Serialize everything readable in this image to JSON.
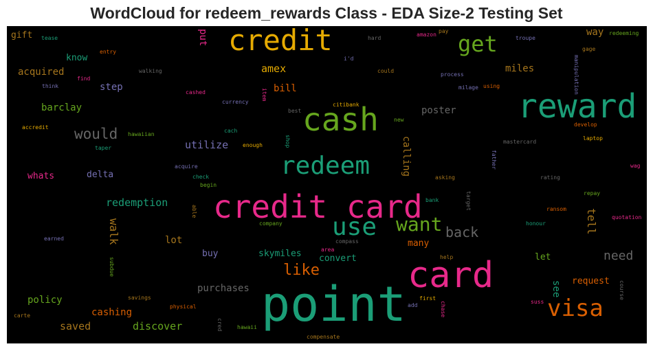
{
  "chart_data": {
    "type": "wordcloud",
    "title": "WordCloud for redeem_rewards Class - EDA Size-2 Testing Set",
    "background": "#000000",
    "colormap": "Dark2",
    "palette": [
      "#1b9e77",
      "#d95f02",
      "#7570b3",
      "#e7298a",
      "#66a61e",
      "#e6ab02",
      "#a6761d",
      "#666666"
    ],
    "words": [
      {
        "text": "point",
        "weight": 1.0,
        "color": "#1b9e77"
      },
      {
        "text": "credit card",
        "weight": 0.82,
        "color": "#e7298a"
      },
      {
        "text": "card",
        "weight": 0.82,
        "color": "#e7298a"
      },
      {
        "text": "reward",
        "weight": 0.8,
        "color": "#1b9e77"
      },
      {
        "text": "credit",
        "weight": 0.7,
        "color": "#e6ab02"
      },
      {
        "text": "cash",
        "weight": 0.7,
        "color": "#66a61e"
      },
      {
        "text": "redeem",
        "weight": 0.6,
        "color": "#1b9e77"
      },
      {
        "text": "use",
        "weight": 0.56,
        "color": "#1b9e77"
      },
      {
        "text": "visa",
        "weight": 0.52,
        "color": "#d95f02"
      },
      {
        "text": "get",
        "weight": 0.48,
        "color": "#66a61e"
      },
      {
        "text": "want",
        "weight": 0.44,
        "color": "#66a61e"
      },
      {
        "text": "like",
        "weight": 0.38,
        "color": "#d95f02"
      },
      {
        "text": "would",
        "weight": 0.36,
        "color": "#666666"
      },
      {
        "text": "back",
        "weight": 0.32,
        "color": "#666666"
      },
      {
        "text": "need",
        "weight": 0.3,
        "color": "#666666"
      },
      {
        "text": "walk",
        "weight": 0.28,
        "color": "#a6761d"
      },
      {
        "text": "tell",
        "weight": 0.28,
        "color": "#a6761d"
      },
      {
        "text": "redemption",
        "weight": 0.28,
        "color": "#1b9e77"
      },
      {
        "text": "utilize",
        "weight": 0.28,
        "color": "#7570b3"
      },
      {
        "text": "discover",
        "weight": 0.28,
        "color": "#66a61e"
      },
      {
        "text": "saved",
        "weight": 0.28,
        "color": "#a6761d"
      },
      {
        "text": "amex",
        "weight": 0.26,
        "color": "#e6ab02"
      },
      {
        "text": "step",
        "weight": 0.26,
        "color": "#7570b3"
      },
      {
        "text": "miles",
        "weight": 0.26,
        "color": "#a6761d"
      },
      {
        "text": "calling",
        "weight": 0.26,
        "color": "#a6761d"
      },
      {
        "text": "lot",
        "weight": 0.26,
        "color": "#a6761d"
      },
      {
        "text": "cashing",
        "weight": 0.26,
        "color": "#d95f02"
      },
      {
        "text": "purchases",
        "weight": 0.26,
        "color": "#666666"
      },
      {
        "text": "see",
        "weight": 0.26,
        "color": "#1b9e77"
      },
      {
        "text": "request",
        "weight": 0.25,
        "color": "#d95f02"
      },
      {
        "text": "bill",
        "weight": 0.25,
        "color": "#d95f02"
      },
      {
        "text": "poster",
        "weight": 0.25,
        "color": "#666666"
      },
      {
        "text": "barclay",
        "weight": 0.24,
        "color": "#66a61e"
      },
      {
        "text": "acquired",
        "weight": 0.24,
        "color": "#a6761d"
      },
      {
        "text": "put",
        "weight": 0.24,
        "color": "#e7298a"
      },
      {
        "text": "way",
        "weight": 0.24,
        "color": "#a6761d"
      },
      {
        "text": "policy",
        "weight": 0.24,
        "color": "#66a61e"
      },
      {
        "text": "know",
        "weight": 0.22,
        "color": "#1b9e77"
      },
      {
        "text": "gift",
        "weight": 0.22,
        "color": "#a6761d"
      },
      {
        "text": "whats",
        "weight": 0.22,
        "color": "#e7298a"
      },
      {
        "text": "delta",
        "weight": 0.22,
        "color": "#7570b3"
      },
      {
        "text": "skymiles",
        "weight": 0.22,
        "color": "#1b9e77"
      },
      {
        "text": "convert",
        "weight": 0.22,
        "color": "#1b9e77"
      },
      {
        "text": "many",
        "weight": 0.22,
        "color": "#d95f02"
      },
      {
        "text": "buy",
        "weight": 0.22,
        "color": "#7570b3"
      },
      {
        "text": "let",
        "weight": 0.22,
        "color": "#66a61e"
      },
      {
        "text": "walking",
        "weight": 0.14,
        "color": "#666666"
      },
      {
        "text": "find",
        "weight": 0.14,
        "color": "#e7298a"
      },
      {
        "text": "think",
        "weight": 0.14,
        "color": "#7570b3"
      },
      {
        "text": "tease",
        "weight": 0.14,
        "color": "#1b9e77"
      },
      {
        "text": "entry",
        "weight": 0.14,
        "color": "#d95f02"
      },
      {
        "text": "cashed",
        "weight": 0.14,
        "color": "#e7298a"
      },
      {
        "text": "currency",
        "weight": 0.14,
        "color": "#7570b3"
      },
      {
        "text": "item",
        "weight": 0.12,
        "color": "#e7298a"
      },
      {
        "text": "best",
        "weight": 0.14,
        "color": "#666666"
      },
      {
        "text": "citibank",
        "weight": 0.14,
        "color": "#e6ab02"
      },
      {
        "text": "new",
        "weight": 0.14,
        "color": "#66a61e"
      },
      {
        "text": "hard",
        "weight": 0.14,
        "color": "#666666"
      },
      {
        "text": "i'd",
        "weight": 0.14,
        "color": "#7570b3"
      },
      {
        "text": "amazon",
        "weight": 0.14,
        "color": "#e7298a"
      },
      {
        "text": "pay",
        "weight": 0.14,
        "color": "#a6761d"
      },
      {
        "text": "troupe",
        "weight": 0.14,
        "color": "#7570b3"
      },
      {
        "text": "redeeming",
        "weight": 0.14,
        "color": "#66a61e"
      },
      {
        "text": "gage",
        "weight": 0.14,
        "color": "#a6761d"
      },
      {
        "text": "manipulation",
        "weight": 0.12,
        "color": "#7570b3"
      },
      {
        "text": "could",
        "weight": 0.14,
        "color": "#a6761d"
      },
      {
        "text": "process",
        "weight": 0.14,
        "color": "#7570b3"
      },
      {
        "text": "milage",
        "weight": 0.14,
        "color": "#7570b3"
      },
      {
        "text": "using",
        "weight": 0.14,
        "color": "#d95f02"
      },
      {
        "text": "accredit",
        "weight": 0.14,
        "color": "#e6ab02"
      },
      {
        "text": "hawaiian",
        "weight": 0.14,
        "color": "#66a61e"
      },
      {
        "text": "cach",
        "weight": 0.14,
        "color": "#1b9e77"
      },
      {
        "text": "taper",
        "weight": 0.14,
        "color": "#1b9e77"
      },
      {
        "text": "enough",
        "weight": 0.14,
        "color": "#e6ab02"
      },
      {
        "text": "shop",
        "weight": 0.12,
        "color": "#1b9e77"
      },
      {
        "text": "acquire",
        "weight": 0.14,
        "color": "#7570b3"
      },
      {
        "text": "check",
        "weight": 0.14,
        "color": "#1b9e77"
      },
      {
        "text": "begin",
        "weight": 0.14,
        "color": "#66a61e"
      },
      {
        "text": "develop",
        "weight": 0.14,
        "color": "#d95f02"
      },
      {
        "text": "laptop",
        "weight": 0.14,
        "color": "#e6ab02"
      },
      {
        "text": "mastercard",
        "weight": 0.14,
        "color": "#666666"
      },
      {
        "text": "father",
        "weight": 0.12,
        "color": "#7570b3"
      },
      {
        "text": "wag",
        "weight": 0.14,
        "color": "#e7298a"
      },
      {
        "text": "asking",
        "weight": 0.14,
        "color": "#a6761d"
      },
      {
        "text": "rating",
        "weight": 0.14,
        "color": "#666666"
      },
      {
        "text": "repay",
        "weight": 0.14,
        "color": "#66a61e"
      },
      {
        "text": "target",
        "weight": 0.12,
        "color": "#666666"
      },
      {
        "text": "bank",
        "weight": 0.14,
        "color": "#1b9e77"
      },
      {
        "text": "ransom",
        "weight": 0.14,
        "color": "#d95f02"
      },
      {
        "text": "quotation",
        "weight": 0.14,
        "color": "#e7298a"
      },
      {
        "text": "honour",
        "weight": 0.14,
        "color": "#1b9e77"
      },
      {
        "text": "able",
        "weight": 0.12,
        "color": "#a6761d"
      },
      {
        "text": "company",
        "weight": 0.14,
        "color": "#66a61e"
      },
      {
        "text": "compass",
        "weight": 0.14,
        "color": "#666666"
      },
      {
        "text": "earned",
        "weight": 0.14,
        "color": "#7570b3"
      },
      {
        "text": "area",
        "weight": 0.14,
        "color": "#e7298a"
      },
      {
        "text": "help",
        "weight": 0.14,
        "color": "#a6761d"
      },
      {
        "text": "subdue",
        "weight": 0.12,
        "color": "#66a61e"
      },
      {
        "text": "savings",
        "weight": 0.14,
        "color": "#a6761d"
      },
      {
        "text": "physical",
        "weight": 0.14,
        "color": "#d95f02"
      },
      {
        "text": "first",
        "weight": 0.14,
        "color": "#e6ab02"
      },
      {
        "text": "add",
        "weight": 0.14,
        "color": "#7570b3"
      },
      {
        "text": "chase",
        "weight": 0.12,
        "color": "#e7298a"
      },
      {
        "text": "suss",
        "weight": 0.14,
        "color": "#e7298a"
      },
      {
        "text": "course",
        "weight": 0.12,
        "color": "#666666"
      },
      {
        "text": "carte",
        "weight": 0.14,
        "color": "#a6761d"
      },
      {
        "text": "cred",
        "weight": 0.12,
        "color": "#666666"
      },
      {
        "text": "hawaii",
        "weight": 0.14,
        "color": "#66a61e"
      },
      {
        "text": "compensate",
        "weight": 0.14,
        "color": "#a6761d"
      }
    ]
  }
}
